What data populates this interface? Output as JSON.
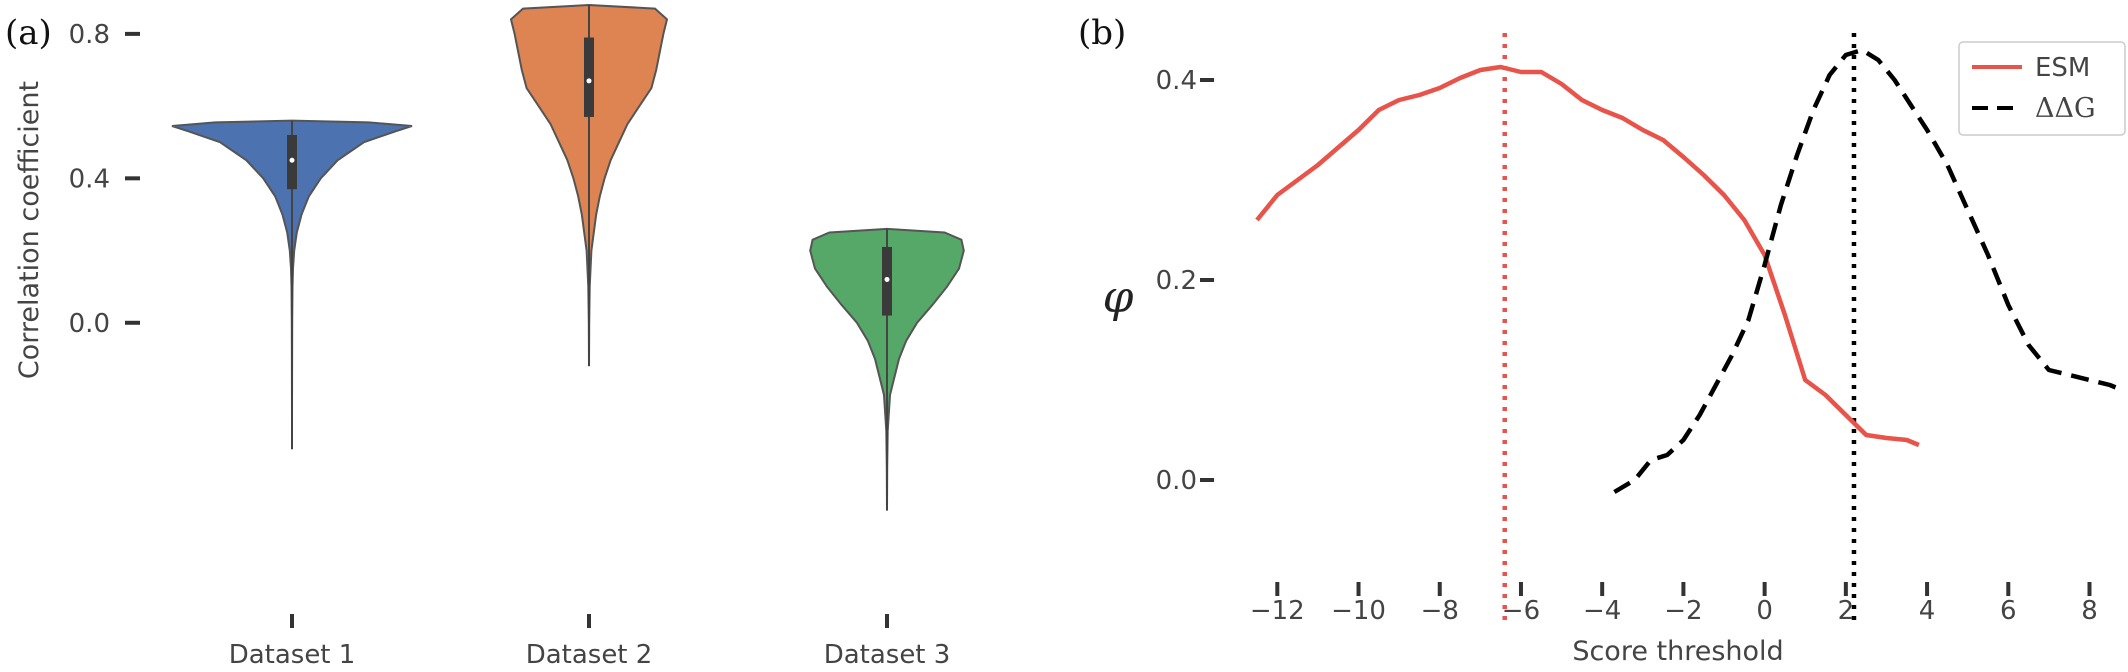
{
  "panels": [
    {
      "label": "(a)"
    },
    {
      "label": "(b)"
    }
  ],
  "chart_data": [
    {
      "type": "violin",
      "title": "",
      "ylabel": "Correlation coefficient",
      "xlabel": "",
      "ylim": [
        -0.38,
        0.88
      ],
      "yticks": [
        0.0,
        0.4,
        0.8
      ],
      "ytick_labels": [
        "0.0",
        "0.4",
        "0.8"
      ],
      "grid": false,
      "categories": [
        "Dataset 1",
        "Dataset 2",
        "Dataset 3"
      ],
      "colors": [
        "#4c72b0",
        "#dd8452",
        "#55a868"
      ],
      "violins": [
        {
          "name": "Dataset 1",
          "min": -0.35,
          "max": 0.56,
          "q1": 0.37,
          "median": 0.45,
          "q3": 0.52,
          "profile": [
            [
              -0.35,
              0.0
            ],
            [
              -0.25,
              0.0
            ],
            [
              -0.1,
              0.001
            ],
            [
              0.0,
              0.002
            ],
            [
              0.1,
              0.004
            ],
            [
              0.15,
              0.008
            ],
            [
              0.2,
              0.018
            ],
            [
              0.25,
              0.04
            ],
            [
              0.3,
              0.08
            ],
            [
              0.35,
              0.14
            ],
            [
              0.4,
              0.24
            ],
            [
              0.45,
              0.38
            ],
            [
              0.5,
              0.6
            ],
            [
              0.53,
              0.86
            ],
            [
              0.545,
              1.0
            ],
            [
              0.555,
              0.64
            ],
            [
              0.56,
              0.0
            ]
          ]
        },
        {
          "name": "Dataset 2",
          "min": -0.12,
          "max": 0.88,
          "q1": 0.57,
          "median": 0.67,
          "q3": 0.79,
          "profile": [
            [
              -0.12,
              0.0
            ],
            [
              0.0,
              0.002
            ],
            [
              0.1,
              0.006
            ],
            [
              0.2,
              0.02
            ],
            [
              0.25,
              0.04
            ],
            [
              0.3,
              0.06
            ],
            [
              0.35,
              0.09
            ],
            [
              0.4,
              0.13
            ],
            [
              0.45,
              0.18
            ],
            [
              0.5,
              0.25
            ],
            [
              0.55,
              0.32
            ],
            [
              0.6,
              0.42
            ],
            [
              0.65,
              0.52
            ],
            [
              0.7,
              0.56
            ],
            [
              0.75,
              0.59
            ],
            [
              0.8,
              0.62
            ],
            [
              0.84,
              0.65
            ],
            [
              0.87,
              0.55
            ],
            [
              0.88,
              0.0
            ]
          ]
        },
        {
          "name": "Dataset 3",
          "min": -0.52,
          "max": 0.26,
          "q1": 0.02,
          "median": 0.12,
          "q3": 0.21,
          "profile": [
            [
              -0.52,
              0.0
            ],
            [
              -0.4,
              0.002
            ],
            [
              -0.3,
              0.006
            ],
            [
              -0.2,
              0.025
            ],
            [
              -0.1,
              0.1
            ],
            [
              -0.05,
              0.16
            ],
            [
              0.0,
              0.25
            ],
            [
              0.05,
              0.38
            ],
            [
              0.1,
              0.5
            ],
            [
              0.15,
              0.6
            ],
            [
              0.2,
              0.64
            ],
            [
              0.23,
              0.62
            ],
            [
              0.25,
              0.48
            ],
            [
              0.26,
              0.0
            ]
          ]
        }
      ]
    },
    {
      "type": "line",
      "title": "",
      "xlabel": "Score threshold",
      "ylabel": "φ",
      "xlim": [
        -12.5,
        8.8
      ],
      "ylim": [
        -0.13,
        0.46
      ],
      "xticks": [
        -12,
        -10,
        -8,
        -6,
        -4,
        -2,
        0,
        2,
        4,
        6,
        8
      ],
      "xtick_labels": [
        "−12",
        "−10",
        "−8",
        "−6",
        "−4",
        "−2",
        "0",
        "2",
        "4",
        "6",
        "8"
      ],
      "yticks": [
        0.0,
        0.2,
        0.4
      ],
      "ytick_labels": [
        "0.0",
        "0.2",
        "0.4"
      ],
      "grid": false,
      "legend_position": "top-right",
      "series": [
        {
          "name": "ESM",
          "color": "#e8534a",
          "style": "solid",
          "x": [
            -12.5,
            -12,
            -11,
            -10,
            -9.5,
            -9,
            -8.5,
            -8,
            -7.5,
            -7,
            -6.5,
            -6,
            -5.5,
            -5,
            -4.5,
            -4,
            -3.5,
            -3,
            -2.5,
            -2,
            -1.5,
            -1,
            -0.5,
            0,
            0.5,
            1,
            1.5,
            2,
            2.5,
            3,
            3.5,
            3.8
          ],
          "y": [
            0.26,
            0.285,
            0.315,
            0.35,
            0.37,
            0.38,
            0.385,
            0.392,
            0.402,
            0.41,
            0.413,
            0.408,
            0.408,
            0.396,
            0.38,
            0.37,
            0.362,
            0.35,
            0.34,
            0.323,
            0.305,
            0.285,
            0.26,
            0.225,
            0.165,
            0.1,
            0.085,
            0.065,
            0.045,
            0.042,
            0.04,
            0.035
          ]
        },
        {
          "name": "ΔΔG",
          "color": "#000000",
          "style": "dashed",
          "x": [
            -3.7,
            -3.2,
            -2.8,
            -2.4,
            -2,
            -1.6,
            -1.2,
            -0.8,
            -0.4,
            0,
            0.4,
            0.8,
            1.2,
            1.6,
            2,
            2.4,
            2.8,
            3.2,
            3.6,
            4,
            4.5,
            5,
            5.5,
            6,
            6.5,
            7,
            7.5,
            8,
            8.5,
            8.8
          ],
          "y": [
            -0.012,
            0.0,
            0.02,
            0.025,
            0.04,
            0.065,
            0.095,
            0.125,
            0.16,
            0.215,
            0.275,
            0.325,
            0.37,
            0.405,
            0.425,
            0.43,
            0.42,
            0.4,
            0.375,
            0.35,
            0.315,
            0.27,
            0.225,
            0.175,
            0.135,
            0.11,
            0.105,
            0.1,
            0.095,
            0.09
          ]
        }
      ],
      "vlines": [
        {
          "x": -6.4,
          "color": "#e8534a",
          "style": "dotted"
        },
        {
          "x": 2.2,
          "color": "#000000",
          "style": "dotted"
        }
      ]
    }
  ]
}
